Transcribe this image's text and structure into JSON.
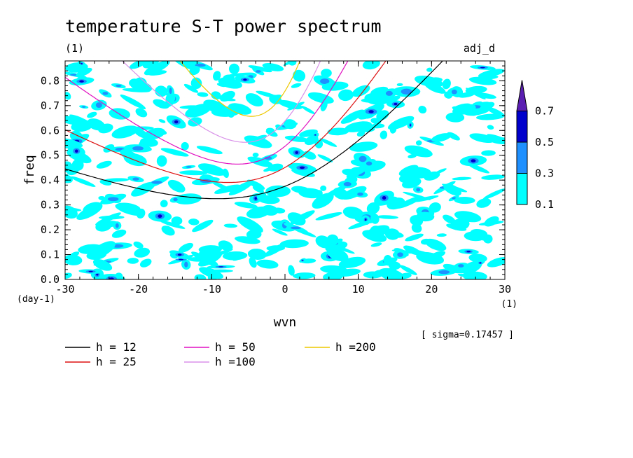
{
  "chart_data": {
    "type": "heatmap",
    "title": "temperature S-T power spectrum",
    "subtitle_left": "(1)",
    "subtitle_right": "adj_d",
    "xlabel": "wvn",
    "ylabel": "freq",
    "x_unit": "(1)",
    "y_unit": "(day-1)",
    "xlim": [
      -30,
      30
    ],
    "ylim": [
      0,
      0.88
    ],
    "x_ticks": [
      -30,
      -20,
      -10,
      0,
      10,
      20,
      30
    ],
    "x_tick_labels": [
      "-30",
      "-20",
      "-10",
      "0",
      "10",
      "20",
      "30"
    ],
    "y_ticks": [
      0,
      0.1,
      0.2,
      0.3,
      0.4,
      0.5,
      0.6,
      0.7,
      0.8
    ],
    "y_tick_labels": [
      "0.0",
      "0.1",
      "0.2",
      "0.3",
      "0.4",
      "0.5",
      "0.6",
      "0.7",
      "0.8"
    ],
    "sigma_note": "[ sigma=0.17457 ]",
    "colorbar": {
      "levels": [
        0.1,
        0.3,
        0.5,
        0.7
      ],
      "labels": [
        "0.1",
        "0.3",
        "0.5",
        "0.7"
      ],
      "colors": [
        "#00ffff",
        "#1e90ff",
        "#0000cd",
        "#5a1fb0"
      ]
    },
    "dispersion_curves": [
      {
        "label": "h = 12",
        "h": 12,
        "color": "#000000"
      },
      {
        "label": "h = 25",
        "h": 25,
        "color": "#dd1111"
      },
      {
        "label": "h = 50",
        "h": 50,
        "color": "#e010c0"
      },
      {
        "label": "h =100",
        "h": 100,
        "color": "#d890e8"
      },
      {
        "label": "h =200",
        "h": 200,
        "color": "#eec800"
      }
    ],
    "grid": false
  }
}
